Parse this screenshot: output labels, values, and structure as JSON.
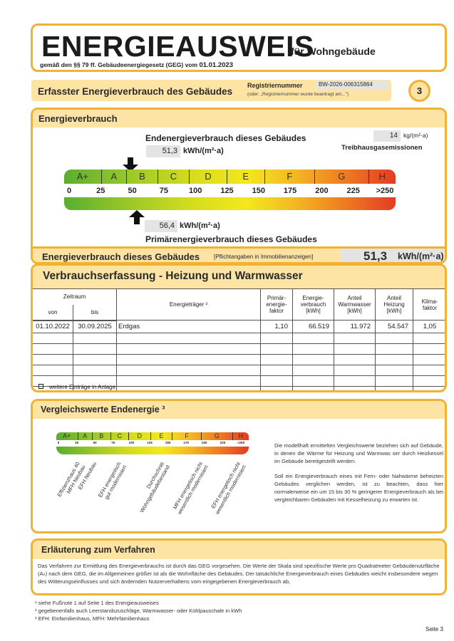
{
  "header": {
    "title": "ENERGIEAUSWEIS",
    "subtitle": "für Wohngebäude",
    "law": "gemäß den §§ 79 ff. Gebäudeenergiegesetz (GEG) vom",
    "law_date": "01.01.2023"
  },
  "section_bar": {
    "title": "Erfasster Energieverbrauch des Gebäudes",
    "reg_label": "Registriernummer",
    "reg_value": "BW-2026-006315864",
    "reg_note": "(oder: „Registriernummer wurde beantragt am...\")",
    "page_badge": "3"
  },
  "energieverbrauch": {
    "heading": "Energieverbrauch",
    "end_label": "Endenergieverbrauch dieses Gebäudes",
    "end_value": "51,3",
    "end_unit": "kWh/(m²·a)",
    "end_numeric": 51.3,
    "ghg_value": "14",
    "ghg_unit": "kg/(m²·a)",
    "ghg_label": "Treibhausgasemissionen",
    "primary_value": "56,4",
    "primary_unit": "kWh/(m²·a)",
    "primary_numeric": 56.4,
    "primary_label": "Primärenergieverbrauch dieses Gebäudes",
    "classes": [
      {
        "label": "A+",
        "max": 30
      },
      {
        "label": "A",
        "max": 50
      },
      {
        "label": "B",
        "max": 75
      },
      {
        "label": "C",
        "max": 100
      },
      {
        "label": "D",
        "max": 130
      },
      {
        "label": "E",
        "max": 160
      },
      {
        "label": "F",
        "max": 200
      },
      {
        "label": "G",
        "max": 243
      },
      {
        "label": "H",
        "max": 260
      }
    ],
    "ticks": [
      "0",
      "25",
      "50",
      "75",
      "100",
      "125",
      "150",
      "175",
      "200",
      "225",
      ">250"
    ],
    "summary_label": "Energieverbrauch dieses Gebäudes",
    "summary_note": "[Pflichtangaben in Immobilienanzeigen]",
    "summary_value": "51,3",
    "summary_unit": "kWh/(m²·a)"
  },
  "verbrauch": {
    "heading": "Verbrauchserfassung - Heizung und Warmwasser",
    "headers": {
      "zeitraum": "Zeitraum",
      "von": "von",
      "bis": "bis",
      "traeger": "Energieträger ²",
      "primaer": "Primär-\nenergie-\nfaktor",
      "energie": "Energie-\nverbrauch\n[kWh]",
      "ww": "Anteil\nWarmwasser\n[kWh]",
      "heiz": "Anteil\nHeizung\n[kWh]",
      "klima": "Klima-\nfaktor"
    },
    "rows": [
      {
        "von": "01.10.2022",
        "bis": "30.09.2025",
        "traeger": "Erdgas",
        "primaer": "1,10",
        "energie": "66.519",
        "ww": "11.972",
        "heiz": "54.547",
        "klima": "1,05"
      }
    ],
    "more": "weitere Einträge in Anlage"
  },
  "vergleich": {
    "heading": "Vergleichswerte Endenergie ³",
    "ticks": [
      "0",
      "25",
      "50",
      "75",
      "100",
      "125",
      "150",
      "175",
      "200",
      "225",
      ">250"
    ],
    "labels": [
      "Effizienzhaus 40\nMFH Neubau",
      "EFH Neubau",
      "EFH energetisch\ngut modernisiert",
      "Durchschnitt\nWohngebäudebestand",
      "MFH energetisch nicht\nwesentlich modernisiert",
      "EFH energetisch nicht\nwesentlich modernisiert"
    ],
    "text1": "Die modellhaft ermittelten Vergleichswerte beziehen sich auf Gebäude, in denen die Wärme für Heizung und Warmwas ser durch Heizkessel im Gebäude bereitgestellt werden.",
    "text2": "Soll ein Energieverbrauch eines mit Fern- oder Nahwärme beheizten Gebäudes verglichen werden, ist zu beachten, dass hier normalerweise ein um 15 bis 30 % geringerer Energieverbrauch als bei vergleichbaren Gebäuden mit Kesselheizung zu erwarten ist."
  },
  "verfahren": {
    "heading": "Erläuterung zum Verfahren",
    "text": "Das Verfahren zur Ermittlung des Energieverbrauchs ist durch das GEG vorgesehen. Die Werte der Skala sind spezifische Werte pro Quadratmeter Gebäudenutzfläche (Aₙ) nach dem GEG, die im Allgemeinen größer ist als die Wohnfläche des Gebäudes. Der tatsächliche Energieverbrauch eines Gebäudes weicht insbesondere wegen des Witterungseinflusses und sich ändernden Nutzerverhaltens vom eingegebenen Energieverbrauch ab,"
  },
  "footnotes": [
    "¹ siehe Fußnote 1 auf Seite 1 des Energieausweises",
    "² gegebenenfalls auch Leerstandszuschläge, Warmwasser- oder Kühlpauschale in kWh",
    "³ EFH: Einfamilienhaus, MFH: Mehrfamilienhaus"
  ],
  "page": "Seite 3",
  "colors": {
    "border": "#f0b232",
    "header_fill": "#fde3a4",
    "green": "#5aae2e",
    "yellow": "#f3e81c",
    "red": "#e23c24"
  }
}
